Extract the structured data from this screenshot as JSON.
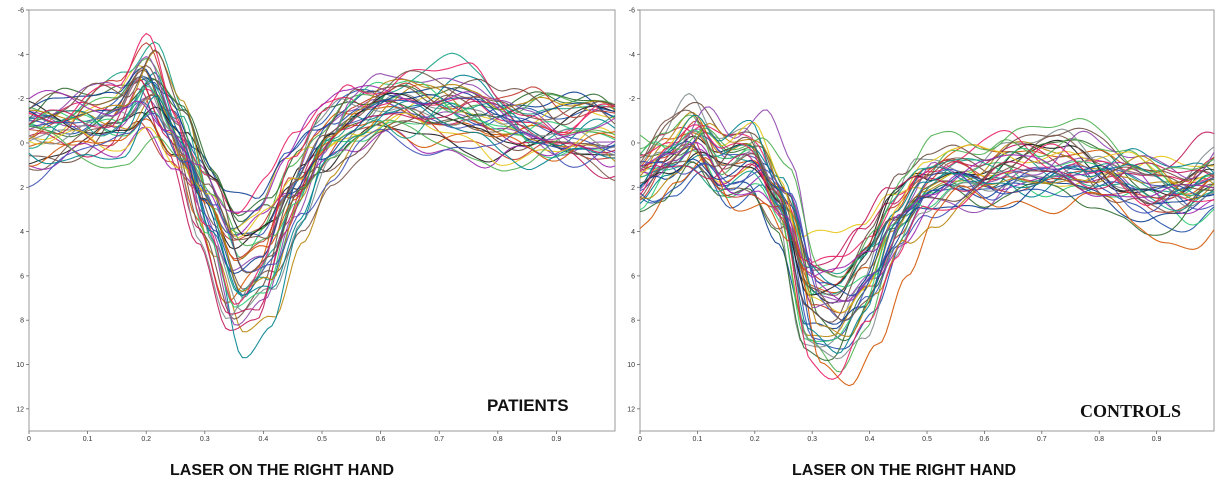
{
  "chart_data": [
    {
      "type": "line",
      "group_label": "PATIENTS",
      "caption": "LASER ON THE RIGHT HAND",
      "xlim": [
        0,
        1.0
      ],
      "ylim": [
        -6,
        13
      ],
      "y_inverted": true,
      "grid": false,
      "x_ticks": [
        "0",
        "0.1",
        "0.2",
        "0.3",
        "0.4",
        "0.5",
        "0.6",
        "0.7",
        "0.8",
        "0.9"
      ],
      "y_ticks": [
        "-6",
        "-4",
        "-2",
        "0",
        "2",
        "4",
        "6",
        "8",
        "10",
        "12"
      ],
      "x": [
        0,
        0.05,
        0.1,
        0.15,
        0.2,
        0.25,
        0.3,
        0.35,
        0.4,
        0.45,
        0.5,
        0.55,
        0.6,
        0.65,
        0.7,
        0.75,
        0.8,
        0.85,
        0.9,
        0.95,
        1.0
      ],
      "mean": [
        -0.5,
        -0.7,
        -0.9,
        -1.2,
        -2.8,
        -0.5,
        3.0,
        6.0,
        5.0,
        2.0,
        0.0,
        -1.0,
        -1.5,
        -1.7,
        -1.8,
        -1.5,
        -1.0,
        -0.6,
        -0.4,
        -0.5,
        -0.3
      ],
      "n_series": 40,
      "series_colors": [
        "#1a1a1a",
        "#2e6b2e",
        "#c0392b",
        "#1f4fa8",
        "#8e44ad",
        "#e6c619",
        "#2ecc71",
        "#d35400",
        "#16a085",
        "#c2185b",
        "#7f8c8d",
        "#0b3d91",
        "#b8860b",
        "#4caf50",
        "#e91e63",
        "#3f51b5",
        "#795548",
        "#00838f",
        "#9c27b0",
        "#6d4c41"
      ]
    },
    {
      "type": "line",
      "group_label": "CONTROLS",
      "caption": "LASER ON THE RIGHT HAND",
      "xlim": [
        0,
        1.0
      ],
      "ylim": [
        -6,
        13
      ],
      "y_inverted": true,
      "grid": false,
      "x_ticks": [
        "0",
        "0.1",
        "0.2",
        "0.3",
        "0.4",
        "0.5",
        "0.6",
        "0.7",
        "0.8",
        "0.9"
      ],
      "y_ticks": [
        "-6",
        "-4",
        "-2",
        "0",
        "2",
        "4",
        "6",
        "8",
        "10",
        "12"
      ],
      "x": [
        0,
        0.05,
        0.1,
        0.15,
        0.2,
        0.25,
        0.3,
        0.35,
        0.4,
        0.45,
        0.5,
        0.55,
        0.6,
        0.65,
        0.7,
        0.75,
        0.8,
        0.85,
        0.9,
        0.95,
        1.0
      ],
      "mean": [
        1.5,
        0.5,
        -0.5,
        1.0,
        0.5,
        2.5,
        7.0,
        7.5,
        6.0,
        3.5,
        2.0,
        1.5,
        1.5,
        1.0,
        1.0,
        0.8,
        1.2,
        1.5,
        1.8,
        2.0,
        1.5
      ],
      "n_series": 40,
      "series_colors": [
        "#1a1a1a",
        "#2e6b2e",
        "#c0392b",
        "#1f4fa8",
        "#8e44ad",
        "#e6c619",
        "#2ecc71",
        "#d35400",
        "#16a085",
        "#c2185b",
        "#7f8c8d",
        "#0b3d91",
        "#b8860b",
        "#4caf50",
        "#e91e63",
        "#3f51b5",
        "#795548",
        "#00838f",
        "#9c27b0",
        "#6d4c41"
      ]
    }
  ]
}
